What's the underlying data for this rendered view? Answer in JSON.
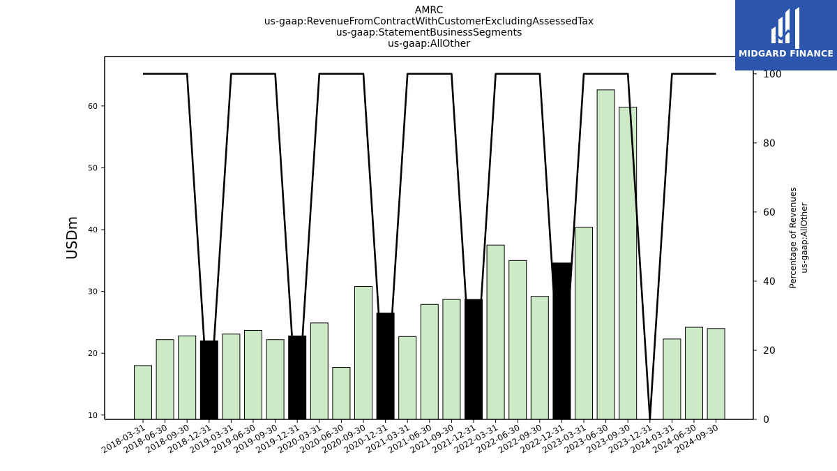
{
  "titles": {
    "line1": "AMRC",
    "line2": "us-gaap:RevenueFromContractWithCustomerExcludingAssessedTax",
    "line3": "us-gaap:StatementBusinessSegments",
    "line4": "us-gaap:AllOther"
  },
  "brand": {
    "name": "MIDGARD FINANCE",
    "color": "#2c56ae"
  },
  "chart_data": {
    "type": "bar",
    "categories": [
      "2018-03-31",
      "2018-06-30",
      "2018-09-30",
      "2018-12-31",
      "2019-03-31",
      "2019-06-30",
      "2019-09-30",
      "2019-12-31",
      "2020-03-31",
      "2020-06-30",
      "2020-09-30",
      "2020-12-31",
      "2021-03-31",
      "2021-06-30",
      "2021-09-30",
      "2021-12-31",
      "2022-03-31",
      "2022-06-30",
      "2022-09-30",
      "2022-12-31",
      "2023-03-31",
      "2023-06-30",
      "2023-09-30",
      "2023-12-31",
      "2024-03-31",
      "2024-06-30",
      "2024-09-30"
    ],
    "series": [
      {
        "axis": "left",
        "kind": "bar",
        "values": [
          18.0,
          22.2,
          22.8,
          22.0,
          23.1,
          23.7,
          22.2,
          22.8,
          24.9,
          17.7,
          30.8,
          26.5,
          22.7,
          27.9,
          28.7,
          28.7,
          37.5,
          35.0,
          29.2,
          34.6,
          40.4,
          62.6,
          59.8,
          null,
          22.3,
          24.2,
          24.0
        ],
        "colors": [
          "#cdeac6",
          "#cdeac6",
          "#cdeac6",
          "#000000",
          "#cdeac6",
          "#cdeac6",
          "#cdeac6",
          "#000000",
          "#cdeac6",
          "#cdeac6",
          "#cdeac6",
          "#000000",
          "#cdeac6",
          "#cdeac6",
          "#cdeac6",
          "#000000",
          "#cdeac6",
          "#cdeac6",
          "#cdeac6",
          "#000000",
          "#cdeac6",
          "#cdeac6",
          "#cdeac6",
          "#cdeac6",
          "#cdeac6",
          "#cdeac6",
          "#cdeac6"
        ]
      },
      {
        "axis": "right",
        "kind": "line",
        "color": "#000000",
        "values": [
          100,
          100,
          100,
          0,
          100,
          100,
          100,
          0,
          100,
          100,
          100,
          0,
          100,
          100,
          100,
          0,
          100,
          100,
          100,
          0,
          100,
          100,
          100,
          0,
          100,
          100,
          100
        ]
      }
    ],
    "ylabel": "USDm",
    "ylabel_right_line1": "Percentage of Revenues",
    "ylabel_right_line2": "us-gaap:AllOther",
    "ylim": [
      9.3,
      68.0
    ],
    "ylim_right": [
      0,
      105
    ],
    "yticks": [
      10,
      20,
      30,
      40,
      50,
      60
    ],
    "yticks_right": [
      0,
      20,
      40,
      60,
      80,
      100
    ],
    "grid": false
  }
}
